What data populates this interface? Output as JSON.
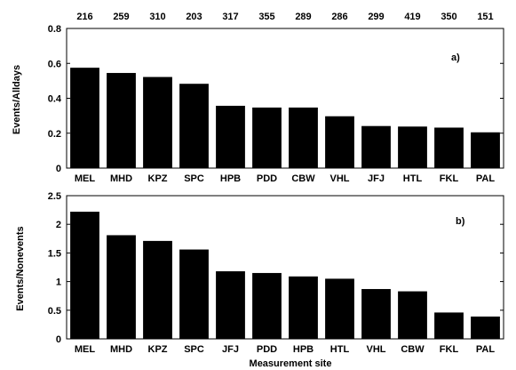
{
  "chart_data": [
    {
      "type": "bar",
      "panel_label": "a)",
      "ylabel": "Events/Alldays",
      "xlabel": "",
      "ylim": [
        0,
        0.8
      ],
      "yticks": [
        0,
        0.2,
        0.4,
        0.6,
        0.8
      ],
      "ytick_labels": [
        "0",
        "0.2",
        "0.4",
        "0.6",
        "0.8"
      ],
      "categories": [
        "MEL",
        "MHD",
        "KPZ",
        "SPC",
        "HPB",
        "PDD",
        "CBW",
        "VHL",
        "JFJ",
        "HTL",
        "FKL",
        "PAL"
      ],
      "values": [
        0.575,
        0.545,
        0.522,
        0.483,
        0.357,
        0.347,
        0.347,
        0.297,
        0.241,
        0.238,
        0.232,
        0.205
      ],
      "top_counts": [
        "216",
        "259",
        "310",
        "203",
        "317",
        "355",
        "289",
        "286",
        "299",
        "419",
        "350",
        "151"
      ]
    },
    {
      "type": "bar",
      "panel_label": "b)",
      "ylabel": "Events/Nonevents",
      "xlabel": "Measurement site",
      "ylim": [
        0,
        2.5
      ],
      "yticks": [
        0,
        0.5,
        1,
        1.5,
        2,
        2.5
      ],
      "ytick_labels": [
        "0",
        "0.5",
        "1",
        "1.5",
        "2",
        "2.5"
      ],
      "categories": [
        "MEL",
        "MHD",
        "KPZ",
        "SPC",
        "JFJ",
        "PDD",
        "HPB",
        "HTL",
        "VHL",
        "CBW",
        "FKL",
        "PAL"
      ],
      "values": [
        2.22,
        1.81,
        1.71,
        1.56,
        1.18,
        1.15,
        1.09,
        1.05,
        0.87,
        0.83,
        0.46,
        0.39
      ]
    }
  ]
}
